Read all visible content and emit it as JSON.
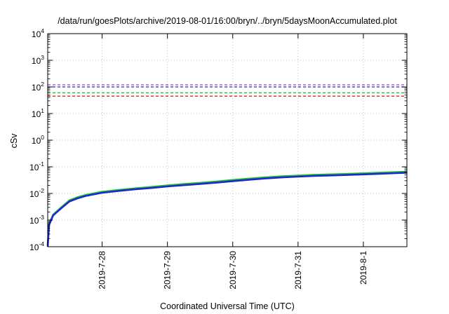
{
  "chart_data": {
    "type": "line",
    "title": "/data/run/goesPlots/archive/2019-08-01/16:00/bryn/../bryn/5daysMoonAccumulated.plot",
    "xlabel": "Coordinated Universal Time (UTC)",
    "ylabel": "cSv",
    "y_scale": "log",
    "ylim": [
      0.0001,
      10000
    ],
    "xlim": [
      "2019-07-27T04:00",
      "2019-08-01T16:00"
    ],
    "x_ticks": [
      "2019-7-28",
      "2019-7-29",
      "2019-7-30",
      "2019-7-31",
      "2019-8-1"
    ],
    "y_ticks": [
      {
        "base": "10",
        "exp": "-4"
      },
      {
        "base": "10",
        "exp": "-3"
      },
      {
        "base": "10",
        "exp": "-2"
      },
      {
        "base": "10",
        "exp": "-1"
      },
      {
        "base": "10",
        "exp": "0"
      },
      {
        "base": "10",
        "exp": "1"
      },
      {
        "base": "10",
        "exp": "2"
      },
      {
        "base": "10",
        "exp": "3"
      },
      {
        "base": "10",
        "exp": "4"
      }
    ],
    "grid": true,
    "threshold_lines": [
      {
        "y": 120,
        "color": "#a040d0",
        "style": "dashed"
      },
      {
        "y": 100,
        "color": "#2030c0",
        "style": "dashed"
      },
      {
        "y": 60,
        "color": "#20c020",
        "style": "dashed"
      },
      {
        "y": 45,
        "color": "#e02020",
        "style": "dashed"
      }
    ],
    "series": [
      {
        "color": "#20c020",
        "x": [
          "2019-07-27T04:00",
          "2019-07-27T04:30",
          "2019-07-27T06:00",
          "2019-07-27T09:00",
          "2019-07-27T12:00",
          "2019-07-27T15:00",
          "2019-07-27T18:00",
          "2019-07-28T00:00",
          "2019-07-28T06:00",
          "2019-07-28T12:00",
          "2019-07-28T18:00",
          "2019-07-29T00:00",
          "2019-07-29T06:00",
          "2019-07-29T12:00",
          "2019-07-29T18:00",
          "2019-07-30T00:00",
          "2019-07-30T06:00",
          "2019-07-30T12:00",
          "2019-07-30T18:00",
          "2019-07-31T00:00",
          "2019-07-31T06:00",
          "2019-07-31T12:00",
          "2019-07-31T18:00",
          "2019-08-01T00:00",
          "2019-08-01T06:00",
          "2019-08-01T12:00",
          "2019-08-01T16:00"
        ],
        "values": [
          0.00012,
          0.0007,
          0.0016,
          0.003,
          0.0055,
          0.0072,
          0.0088,
          0.0115,
          0.0135,
          0.0155,
          0.0175,
          0.02,
          0.0225,
          0.025,
          0.028,
          0.032,
          0.036,
          0.04,
          0.044,
          0.047,
          0.05,
          0.052,
          0.054,
          0.057,
          0.06,
          0.063,
          0.065
        ]
      },
      {
        "color": "#1a2ad0",
        "x": [
          "2019-07-27T04:00",
          "2019-07-27T04:30",
          "2019-07-27T06:00",
          "2019-07-27T09:00",
          "2019-07-27T12:00",
          "2019-07-27T15:00",
          "2019-07-27T18:00",
          "2019-07-28T00:00",
          "2019-07-28T06:00",
          "2019-07-28T12:00",
          "2019-07-28T18:00",
          "2019-07-29T00:00",
          "2019-07-29T06:00",
          "2019-07-29T12:00",
          "2019-07-29T18:00",
          "2019-07-30T00:00",
          "2019-07-30T06:00",
          "2019-07-30T12:00",
          "2019-07-30T18:00",
          "2019-07-31T00:00",
          "2019-07-31T06:00",
          "2019-07-31T12:00",
          "2019-07-31T18:00",
          "2019-08-01T00:00",
          "2019-08-01T06:00",
          "2019-08-01T12:00",
          "2019-08-01T16:00"
        ],
        "values": [
          0.0001,
          0.00065,
          0.0015,
          0.0028,
          0.005,
          0.0066,
          0.0081,
          0.0106,
          0.0124,
          0.0143,
          0.016,
          0.0183,
          0.0205,
          0.0228,
          0.0255,
          0.029,
          0.0328,
          0.0365,
          0.04,
          0.0428,
          0.0455,
          0.0475,
          0.0495,
          0.052,
          0.055,
          0.058,
          0.06
        ]
      }
    ]
  }
}
